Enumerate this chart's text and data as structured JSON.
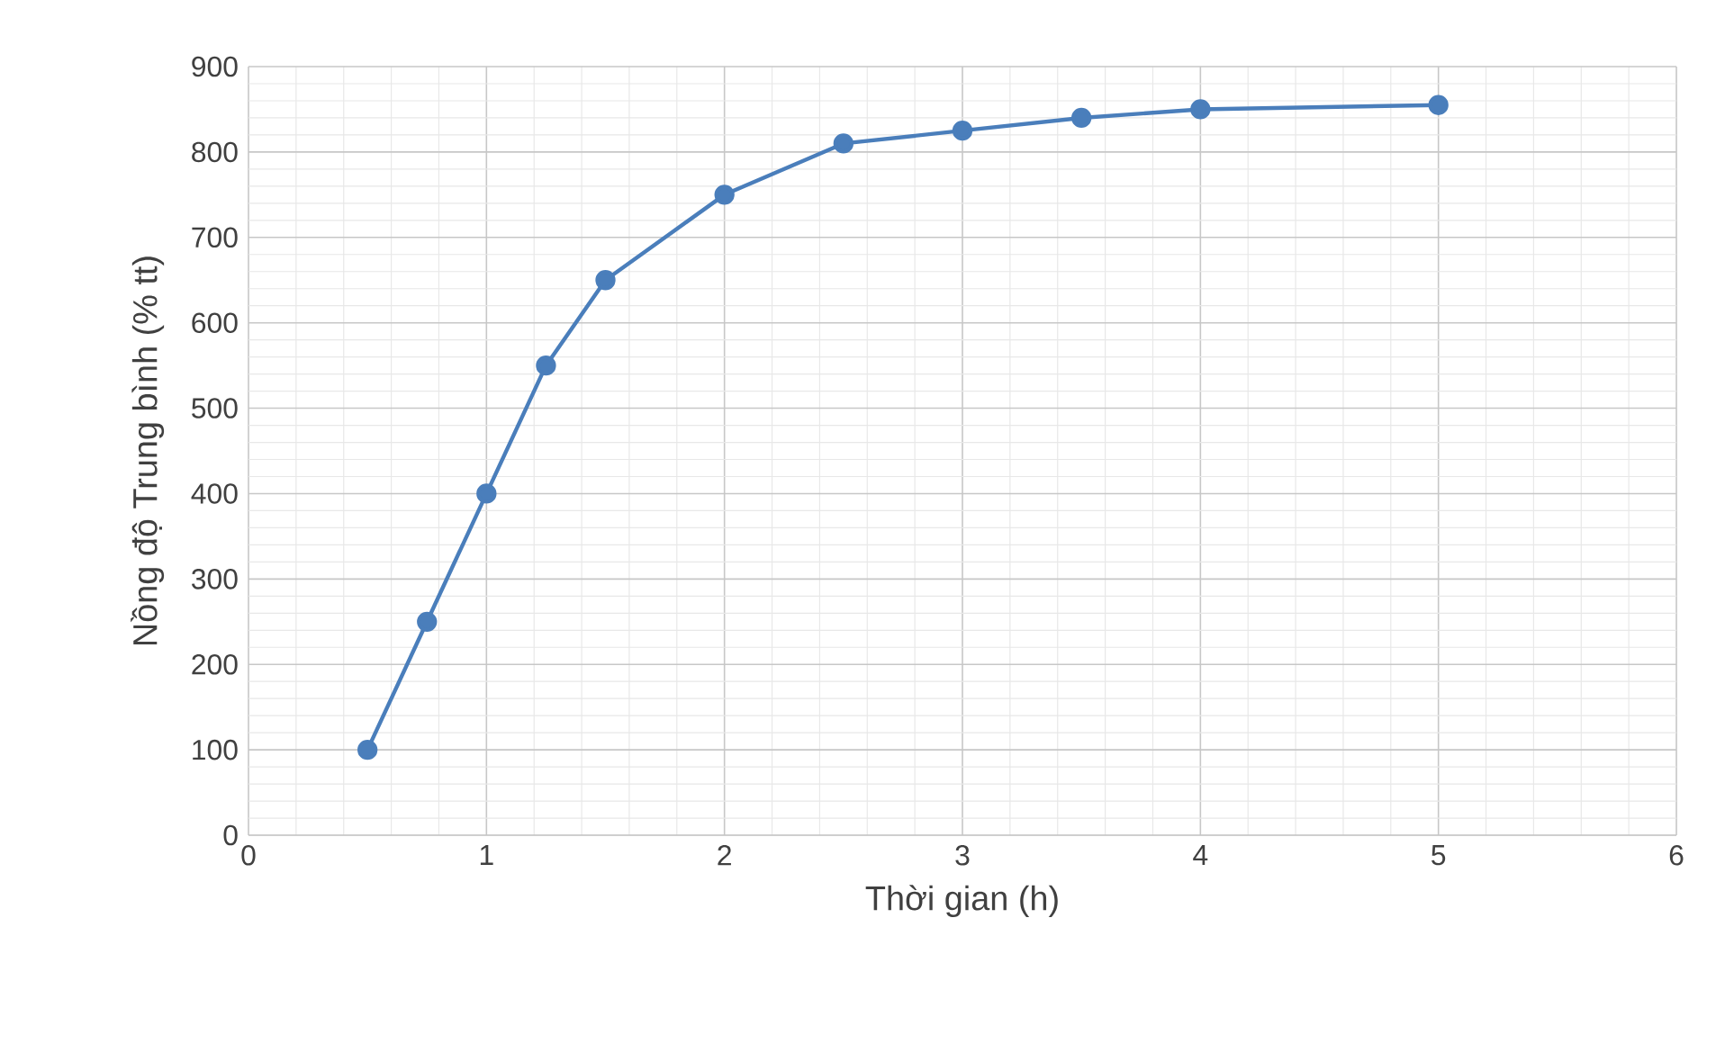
{
  "chart_data": {
    "type": "line",
    "xlabel": "Thời gian (h)",
    "ylabel": "Nồng độ Trung bình (% tt)",
    "x": [
      0.5,
      0.75,
      1,
      1.25,
      1.5,
      2,
      2.5,
      3,
      3.5,
      4,
      5
    ],
    "series": [
      {
        "color": "#4a7ebb",
        "values": [
          100,
          250,
          400,
          550,
          650,
          750,
          810,
          825,
          840,
          850,
          855
        ]
      }
    ],
    "xlim": [
      0,
      6
    ],
    "xticks": [
      0,
      1,
      2,
      3,
      4,
      5,
      6
    ],
    "ylim": [
      0,
      900
    ],
    "yticks": [
      0,
      100,
      200,
      300,
      400,
      500,
      600,
      700,
      800,
      900
    ],
    "grid": true,
    "marker": "circle",
    "line_style": "solid"
  }
}
